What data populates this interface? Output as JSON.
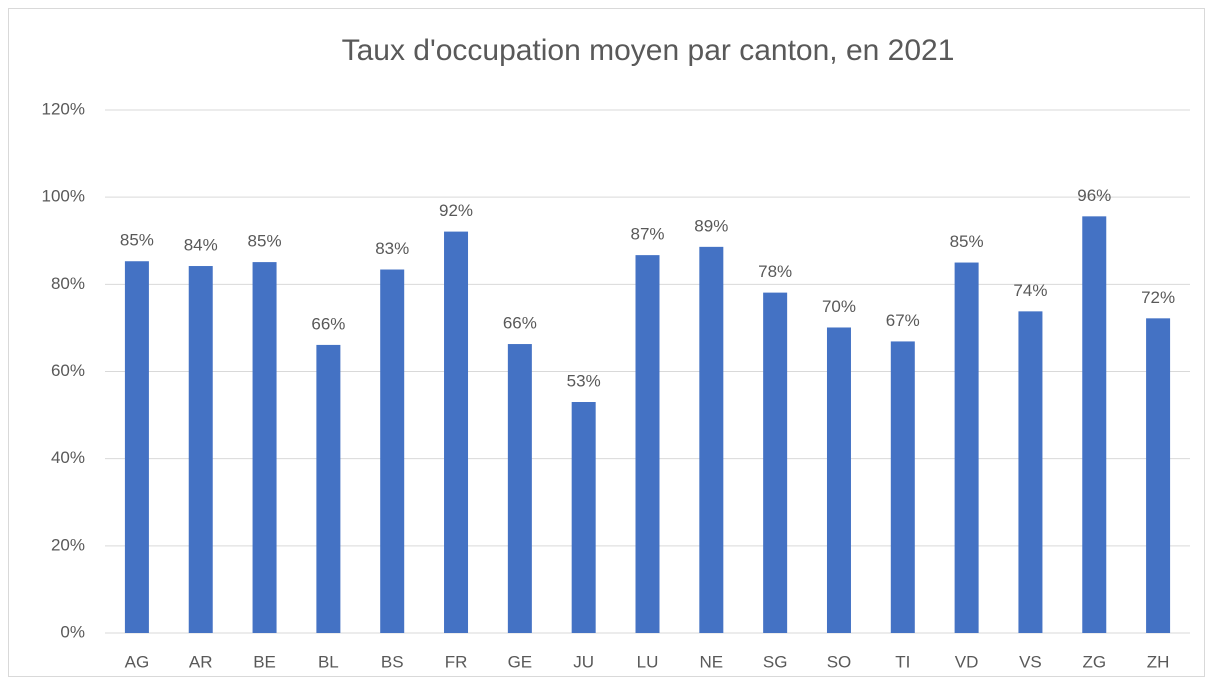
{
  "chart_data": {
    "type": "bar",
    "title": "Taux d'occupation moyen par canton, en 2021",
    "categories": [
      "AG",
      "AR",
      "BE",
      "BL",
      "BS",
      "FR",
      "GE",
      "JU",
      "LU",
      "NE",
      "SG",
      "SO",
      "TI",
      "VD",
      "VS",
      "ZG",
      "ZH"
    ],
    "values": [
      85.3,
      84.2,
      85.1,
      66.1,
      83.4,
      92.1,
      66.3,
      53,
      86.7,
      88.6,
      78.1,
      70.1,
      66.9,
      85,
      73.8,
      95.6,
      72.2
    ],
    "value_labels": [
      "85%",
      "84%",
      "85%",
      "66%",
      "83%",
      "92%",
      "66%",
      "53%",
      "87%",
      "89%",
      "78%",
      "70%",
      "67%",
      "85%",
      "74%",
      "96%",
      "72%"
    ],
    "color": "#4472c4",
    "ylim": [
      0,
      120
    ],
    "yticks": [
      {
        "value": 0,
        "label": "0%"
      },
      {
        "value": 20,
        "label": "20%"
      },
      {
        "value": 40,
        "label": "40%"
      },
      {
        "value": 60,
        "label": "60%"
      },
      {
        "value": 80,
        "label": "80%"
      },
      {
        "value": 100,
        "label": "100%"
      },
      {
        "value": 120,
        "label": "120%"
      }
    ],
    "grid": true
  }
}
